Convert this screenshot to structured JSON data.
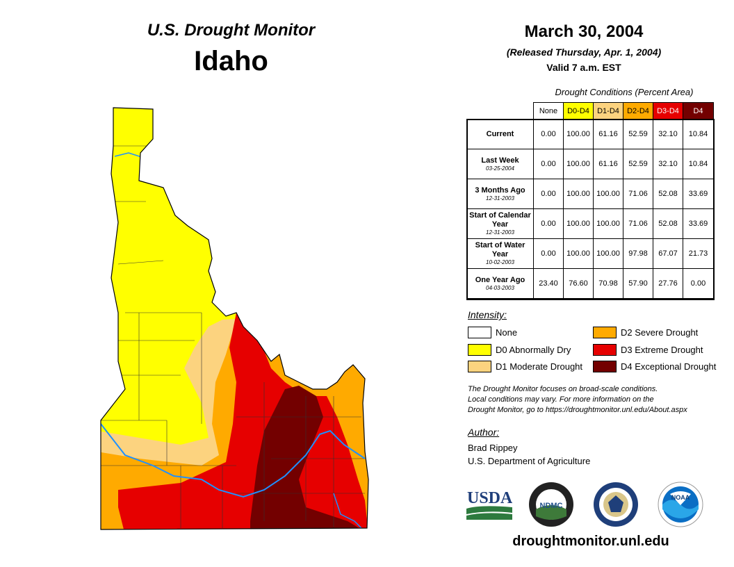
{
  "header": {
    "title": "U.S. Drought Monitor",
    "state": "Idaho",
    "date": "March 30, 2004",
    "released": "(Released Thursday, Apr. 1, 2004)",
    "valid": "Valid 7 a.m. EST"
  },
  "table": {
    "caption": "Drought Conditions (Percent Area)",
    "columns": [
      "None",
      "D0-D4",
      "D1-D4",
      "D2-D4",
      "D3-D4",
      "D4"
    ],
    "rows": [
      {
        "label": "Current",
        "sub": "",
        "values": [
          "0.00",
          "100.00",
          "61.16",
          "52.59",
          "32.10",
          "10.84"
        ]
      },
      {
        "label": "Last Week",
        "sub": "03-25-2004",
        "values": [
          "0.00",
          "100.00",
          "61.16",
          "52.59",
          "32.10",
          "10.84"
        ]
      },
      {
        "label": "3 Months Ago",
        "sub": "12-31-2003",
        "values": [
          "0.00",
          "100.00",
          "100.00",
          "71.06",
          "52.08",
          "33.69"
        ]
      },
      {
        "label": "Start of Calendar Year",
        "sub": "12-31-2003",
        "values": [
          "0.00",
          "100.00",
          "100.00",
          "71.06",
          "52.08",
          "33.69"
        ]
      },
      {
        "label": "Start of Water Year",
        "sub": "10-02-2003",
        "values": [
          "0.00",
          "100.00",
          "100.00",
          "97.98",
          "67.07",
          "21.73"
        ]
      },
      {
        "label": "One Year Ago",
        "sub": "04-03-2003",
        "values": [
          "23.40",
          "76.60",
          "70.98",
          "57.90",
          "27.76",
          "0.00"
        ]
      }
    ]
  },
  "legend": {
    "title": "Intensity:",
    "items": [
      {
        "label": "None",
        "color": "#ffffff"
      },
      {
        "label": "D0 Abnormally Dry",
        "color": "#ffff00"
      },
      {
        "label": "D1 Moderate Drought",
        "color": "#fcd37f"
      },
      {
        "label": "D2 Severe Drought",
        "color": "#ffaa00"
      },
      {
        "label": "D3 Extreme Drought",
        "color": "#e60000"
      },
      {
        "label": "D4 Exceptional Drought",
        "color": "#730000"
      }
    ]
  },
  "note": {
    "line1": "The Drought Monitor focuses on broad-scale conditions.",
    "line2": "Local conditions may vary. For more information on the",
    "line3": "Drought Monitor, go to https://droughtmonitor.unl.edu/About.aspx"
  },
  "author": {
    "heading": "Author:",
    "name": "Brad Rippey",
    "org": "U.S. Department of Agriculture"
  },
  "logos": {
    "usda": "USDA",
    "ndmc": "NDMC",
    "noaa": "NOAA"
  },
  "url": "droughtmonitor.unl.edu"
}
